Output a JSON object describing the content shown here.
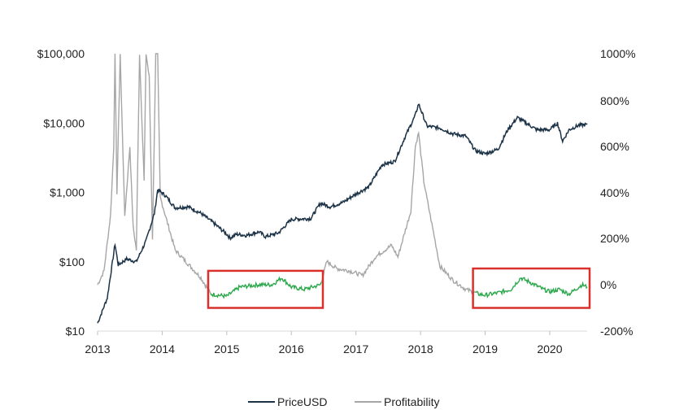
{
  "chart_data": {
    "type": "line",
    "title": "",
    "xlabel": "",
    "ylabel_left": "",
    "ylabel_right": "",
    "x_ticks": [
      "2013",
      "2014",
      "2015",
      "2016",
      "2017",
      "2018",
      "2019",
      "2020"
    ],
    "x_range": [
      2013.0,
      2020.58
    ],
    "y_left": {
      "scale": "log",
      "range": [
        10,
        100000
      ],
      "ticks": [
        "$10",
        "$100",
        "$1,000",
        "$10,000",
        "$100,000"
      ],
      "tick_values": [
        10,
        100,
        1000,
        10000,
        100000
      ]
    },
    "y_right": {
      "scale": "custom",
      "ticks": [
        "-200%",
        "0%",
        "200%",
        "400%",
        "600%",
        "800%",
        "1000%"
      ],
      "tick_values": [
        -200,
        0,
        200,
        400,
        600,
        800,
        1000
      ]
    },
    "grid": false,
    "legend_position": "bottom-center",
    "series": [
      {
        "name": "PriceUSD",
        "axis": "left",
        "color": "#1c3347",
        "points": [
          [
            2013.0,
            13
          ],
          [
            2013.15,
            30
          ],
          [
            2013.27,
            180
          ],
          [
            2013.32,
            90
          ],
          [
            2013.45,
            110
          ],
          [
            2013.6,
            100
          ],
          [
            2013.75,
            200
          ],
          [
            2013.88,
            500
          ],
          [
            2013.93,
            1100
          ],
          [
            2014.05,
            900
          ],
          [
            2014.2,
            600
          ],
          [
            2014.4,
            620
          ],
          [
            2014.6,
            500
          ],
          [
            2014.8,
            360
          ],
          [
            2015.0,
            250
          ],
          [
            2015.05,
            220
          ],
          [
            2015.15,
            250
          ],
          [
            2015.3,
            240
          ],
          [
            2015.5,
            270
          ],
          [
            2015.6,
            230
          ],
          [
            2015.8,
            260
          ],
          [
            2016.0,
            410
          ],
          [
            2016.3,
            420
          ],
          [
            2016.45,
            700
          ],
          [
            2016.6,
            620
          ],
          [
            2016.8,
            720
          ],
          [
            2017.0,
            950
          ],
          [
            2017.2,
            1200
          ],
          [
            2017.4,
            2500
          ],
          [
            2017.6,
            2800
          ],
          [
            2017.75,
            6000
          ],
          [
            2017.92,
            13000
          ],
          [
            2017.97,
            19000
          ],
          [
            2018.1,
            9000
          ],
          [
            2018.3,
            8500
          ],
          [
            2018.5,
            7000
          ],
          [
            2018.7,
            6500
          ],
          [
            2018.85,
            4000
          ],
          [
            2019.0,
            3600
          ],
          [
            2019.2,
            4200
          ],
          [
            2019.35,
            8000
          ],
          [
            2019.5,
            12000
          ],
          [
            2019.6,
            10500
          ],
          [
            2019.8,
            8000
          ],
          [
            2020.0,
            8000
          ],
          [
            2020.12,
            10000
          ],
          [
            2020.2,
            5500
          ],
          [
            2020.3,
            8000
          ],
          [
            2020.45,
            9300
          ],
          [
            2020.58,
            9500
          ]
        ]
      },
      {
        "name": "Profitability",
        "axis": "right",
        "color": "#a6a6a6",
        "points": [
          [
            2013.0,
            0
          ],
          [
            2013.1,
            60
          ],
          [
            2013.2,
            300
          ],
          [
            2013.25,
            600
          ],
          [
            2013.27,
            1000
          ],
          [
            2013.3,
            400
          ],
          [
            2013.35,
            1000
          ],
          [
            2013.42,
            300
          ],
          [
            2013.5,
            600
          ],
          [
            2013.55,
            250
          ],
          [
            2013.6,
            150
          ],
          [
            2013.65,
            1000
          ],
          [
            2013.72,
            450
          ],
          [
            2013.75,
            1000
          ],
          [
            2013.8,
            900
          ],
          [
            2013.85,
            200
          ],
          [
            2013.9,
            1000
          ],
          [
            2013.93,
            1000
          ],
          [
            2013.97,
            380
          ],
          [
            2014.05,
            300
          ],
          [
            2014.2,
            150
          ],
          [
            2014.4,
            90
          ],
          [
            2014.6,
            30
          ],
          [
            2014.75,
            -40
          ],
          [
            2015.0,
            -50
          ],
          [
            2015.2,
            -10
          ],
          [
            2015.5,
            0
          ],
          [
            2015.7,
            0
          ],
          [
            2015.85,
            30
          ],
          [
            2016.0,
            -10
          ],
          [
            2016.2,
            -20
          ],
          [
            2016.45,
            0
          ],
          [
            2016.55,
            100
          ],
          [
            2016.7,
            70
          ],
          [
            2016.9,
            60
          ],
          [
            2017.1,
            40
          ],
          [
            2017.3,
            120
          ],
          [
            2017.55,
            170
          ],
          [
            2017.65,
            120
          ],
          [
            2017.85,
            320
          ],
          [
            2017.92,
            600
          ],
          [
            2017.97,
            660
          ],
          [
            2018.05,
            450
          ],
          [
            2018.15,
            300
          ],
          [
            2018.3,
            80
          ],
          [
            2018.5,
            20
          ],
          [
            2018.7,
            -20
          ],
          [
            2018.9,
            -40
          ],
          [
            2019.0,
            -45
          ],
          [
            2019.2,
            -35
          ],
          [
            2019.4,
            -20
          ],
          [
            2019.55,
            30
          ],
          [
            2019.7,
            10
          ],
          [
            2019.9,
            -20
          ],
          [
            2020.0,
            -30
          ],
          [
            2020.15,
            -20
          ],
          [
            2020.3,
            -40
          ],
          [
            2020.5,
            0
          ],
          [
            2020.58,
            -10
          ]
        ]
      }
    ],
    "highlight_segments": [
      {
        "series": "Profitability",
        "x_range": [
          2014.75,
          2016.45
        ],
        "color": "#2aa84a"
      },
      {
        "series": "Profitability",
        "x_range": [
          2018.85,
          2020.58
        ],
        "color": "#2aa84a"
      }
    ],
    "annotations": [
      {
        "type": "box",
        "x_range": [
          2014.75,
          2016.45
        ],
        "y_right_range": [
          -100,
          60
        ],
        "color": "#d9302b"
      },
      {
        "type": "box",
        "x_range": [
          2018.85,
          2020.58
        ],
        "y_right_range": [
          -100,
          70
        ],
        "color": "#d9302b"
      }
    ]
  }
}
